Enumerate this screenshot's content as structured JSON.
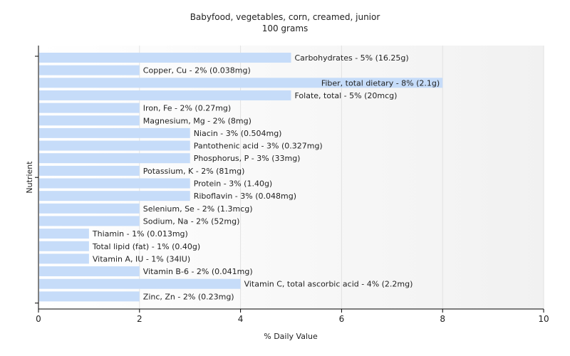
{
  "chart_data": {
    "type": "bar",
    "orientation": "horizontal",
    "title": "Babyfood, vegetables, corn, creamed, junior",
    "subtitle": "100 grams",
    "xlabel": "% Daily Value",
    "ylabel": "Nutrient",
    "xlim": [
      0,
      10
    ],
    "xticks": [
      0,
      2,
      4,
      6,
      8,
      10
    ],
    "grid": true,
    "categories": [
      "Carbohydrates",
      "Copper, Cu",
      "Fiber, total dietary",
      "Folate, total",
      "Iron, Fe",
      "Magnesium, Mg",
      "Niacin",
      "Pantothenic acid",
      "Phosphorus, P",
      "Potassium, K",
      "Protein",
      "Riboflavin",
      "Selenium, Se",
      "Sodium, Na",
      "Thiamin",
      "Total lipid (fat)",
      "Vitamin A, IU",
      "Vitamin B-6",
      "Vitamin C, total ascorbic acid",
      "Zinc, Zn"
    ],
    "values": [
      5,
      2,
      8,
      5,
      2,
      2,
      3,
      3,
      3,
      2,
      3,
      3,
      2,
      2,
      1,
      1,
      1,
      2,
      4,
      2
    ],
    "labels": [
      "Carbohydrates - 5% (16.25g)",
      "Copper, Cu - 2% (0.038mg)",
      "Fiber, total dietary - 8% (2.1g)",
      "Folate, total - 5% (20mcg)",
      "Iron, Fe - 2% (0.27mg)",
      "Magnesium, Mg - 2% (8mg)",
      "Niacin - 3% (0.504mg)",
      "Pantothenic acid - 3% (0.327mg)",
      "Phosphorus, P - 3% (33mg)",
      "Potassium, K - 2% (81mg)",
      "Protein - 3% (1.40g)",
      "Riboflavin - 3% (0.048mg)",
      "Selenium, Se - 2% (1.3mcg)",
      "Sodium, Na - 2% (52mg)",
      "Thiamin - 1% (0.013mg)",
      "Total lipid (fat) - 1% (0.40g)",
      "Vitamin A, IU - 1% (34IU)",
      "Vitamin B-6 - 2% (0.041mg)",
      "Vitamin C, total ascorbic acid - 4% (2.2mg)",
      "Zinc, Zn - 2% (0.23mg)"
    ],
    "colors": {
      "bar": "#c6dcf9",
      "axis": "#000000",
      "grid": "#e2e2e2",
      "text": "#222222"
    }
  }
}
